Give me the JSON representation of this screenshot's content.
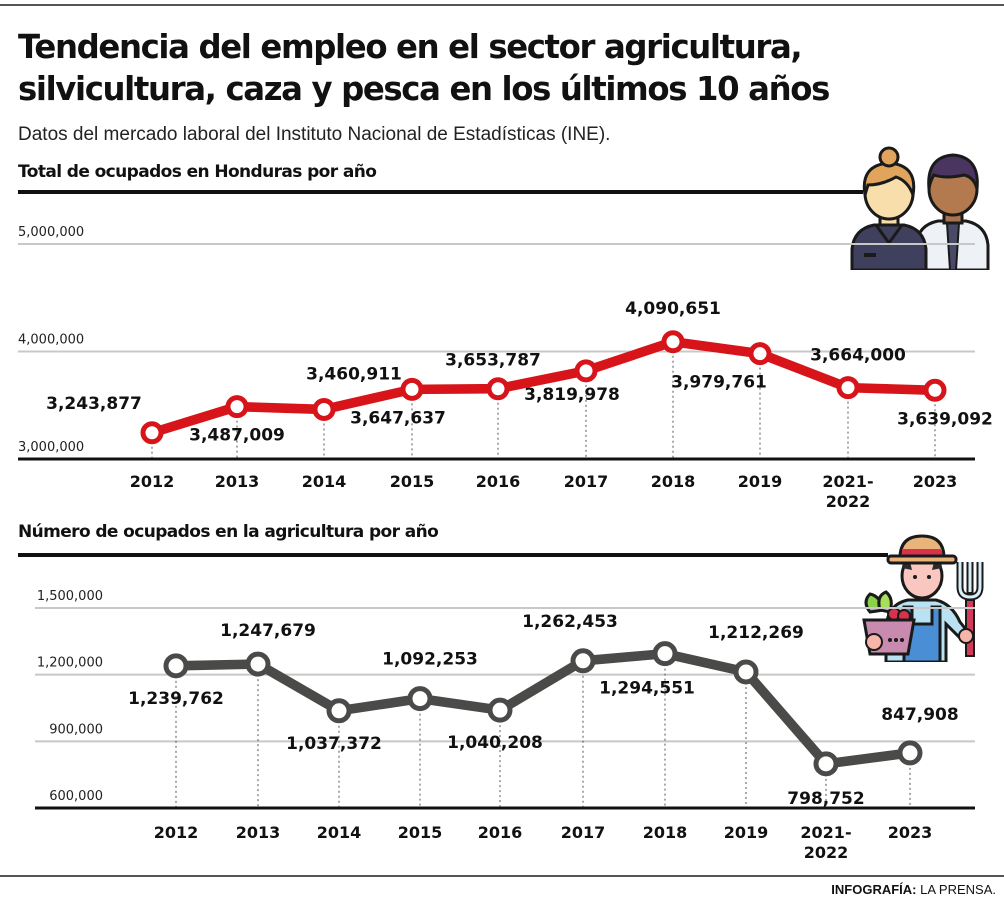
{
  "header": {
    "title_line1": "Tendencia del empleo en el sector agricultura,",
    "title_line2": "silvicultura, caza y pesca en los últimos 10 años",
    "subtitle": "Datos del mercado laboral del Instituto Nacional de Estadísticas (INE)."
  },
  "footer": {
    "credit_label": "INFOGRAFÍA:",
    "credit_source": "LA PRENSA."
  },
  "icons": {
    "chart1": "workers-icon",
    "chart2": "farmer-icon"
  },
  "colors": {
    "chart1_line": "#d7141a",
    "chart2_line": "#4a4a48",
    "grid": "#c8c8c8",
    "axis": "#111111"
  },
  "chart_data": [
    {
      "type": "line",
      "title": "Total de ocupados en Honduras por año",
      "xlabel": "",
      "ylabel": "",
      "categories": [
        "2012",
        "2013",
        "2014",
        "2015",
        "2016",
        "2017",
        "2018",
        "2019",
        "2021-2022",
        "2023"
      ],
      "series": [
        {
          "name": "Total de ocupados",
          "values": [
            3243877,
            3487009,
            3460911,
            3647637,
            3653787,
            3819978,
            4090651,
            3979761,
            3664000,
            3639092
          ],
          "labels": [
            "3,243,877",
            "3,487,009",
            "3,460,911",
            "3,647,637",
            "3,653,787",
            "3,819,978",
            "4,090,651",
            "3,979,761",
            "3,664,000",
            "3,639,092"
          ]
        }
      ],
      "ylim": [
        3000000,
        5000000
      ],
      "yticks": [
        3000000,
        4000000,
        5000000
      ],
      "ytick_labels": [
        "3,000,000",
        "4,000,000",
        "5,000,000"
      ],
      "grid": true,
      "legend": "none"
    },
    {
      "type": "line",
      "title": "Número de ocupados en la agricultura por año",
      "xlabel": "",
      "ylabel": "",
      "categories": [
        "2012",
        "2013",
        "2014",
        "2015",
        "2016",
        "2017",
        "2018",
        "2019",
        "2021-2022",
        "2023"
      ],
      "series": [
        {
          "name": "Ocupados en la agricultura",
          "values": [
            1239762,
            1247679,
            1037372,
            1092253,
            1040208,
            1262453,
            1294551,
            1212269,
            798752,
            847908
          ],
          "labels": [
            "1,239,762",
            "1,247,679",
            "1,037,372",
            "1,092,253",
            "1,040,208",
            "1,262,453",
            "1,294,551",
            "1,212,269",
            "798,752",
            "847,908"
          ]
        }
      ],
      "ylim": [
        600000,
        1500000
      ],
      "yticks": [
        600000,
        900000,
        1200000,
        1500000
      ],
      "ytick_labels": [
        "600,000",
        "900,000",
        "1,200,000",
        "1,500,000"
      ],
      "grid": true,
      "legend": "none"
    }
  ]
}
